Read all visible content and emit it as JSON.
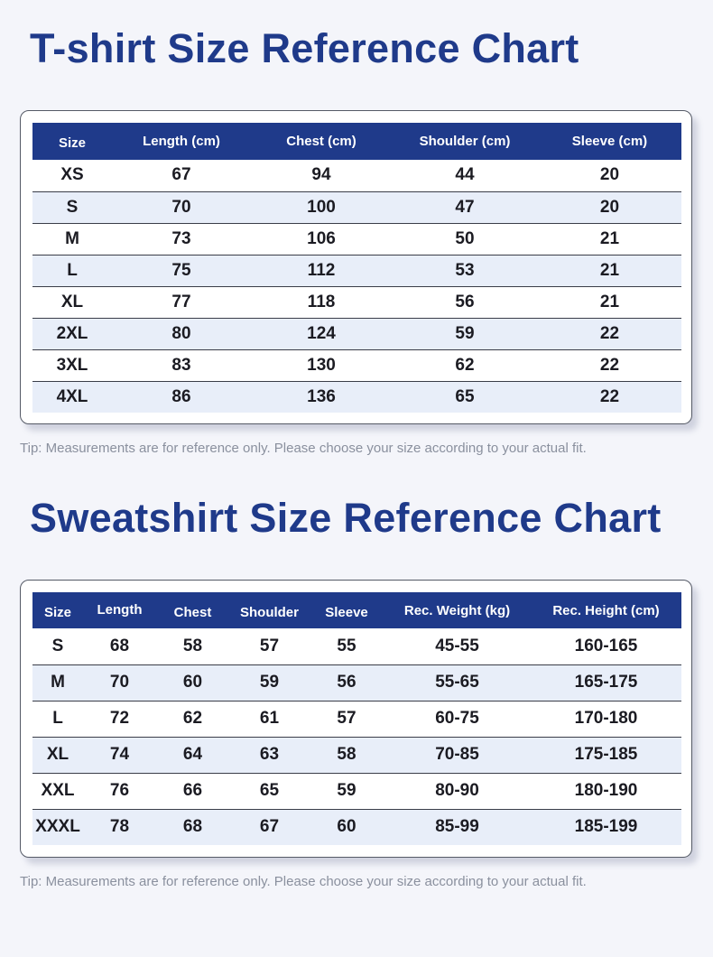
{
  "tshirt": {
    "title": "T-shirt Size Reference Chart",
    "headers": [
      "Size",
      "Length (cm)",
      "Chest (cm)",
      "Shoulder (cm)",
      "Sleeve (cm)"
    ],
    "rows": [
      [
        "XS",
        "67",
        "94",
        "44",
        "20"
      ],
      [
        "S",
        "70",
        "100",
        "47",
        "20"
      ],
      [
        "M",
        "73",
        "106",
        "50",
        "21"
      ],
      [
        "L",
        "75",
        "112",
        "53",
        "21"
      ],
      [
        "XL",
        "77",
        "118",
        "56",
        "21"
      ],
      [
        "2XL",
        "80",
        "124",
        "59",
        "22"
      ],
      [
        "3XL",
        "83",
        "130",
        "62",
        "22"
      ],
      [
        "4XL",
        "86",
        "136",
        "65",
        "22"
      ]
    ],
    "tip": "Tip: Measurements are for reference only. Please choose your size according to your actual fit."
  },
  "sweatshirt": {
    "title": "Sweatshirt Size Reference Chart",
    "headers": [
      "Size",
      "Length",
      "Chest",
      "Shoulder",
      "Sleeve",
      "Rec. Weight (kg)",
      "Rec. Height (cm)"
    ],
    "rows": [
      [
        "S",
        "68",
        "58",
        "57",
        "55",
        "45-55",
        "160-165"
      ],
      [
        "M",
        "70",
        "60",
        "59",
        "56",
        "55-65",
        "165-175"
      ],
      [
        "L",
        "72",
        "62",
        "61",
        "57",
        "60-75",
        "170-180"
      ],
      [
        "XL",
        "74",
        "64",
        "63",
        "58",
        "70-85",
        "175-185"
      ],
      [
        "XXL",
        "76",
        "66",
        "65",
        "59",
        "80-90",
        "180-190"
      ],
      [
        "XXXL",
        "78",
        "68",
        "67",
        "60",
        "85-99",
        "185-199"
      ]
    ],
    "tip": "Tip: Measurements are for reference only. Please choose your size according to your actual fit."
  },
  "colors": {
    "title": "#1f3a8a",
    "header_bg": "#1f3a8a",
    "stripe": "#e8eef9",
    "tip": "#8a909e"
  }
}
